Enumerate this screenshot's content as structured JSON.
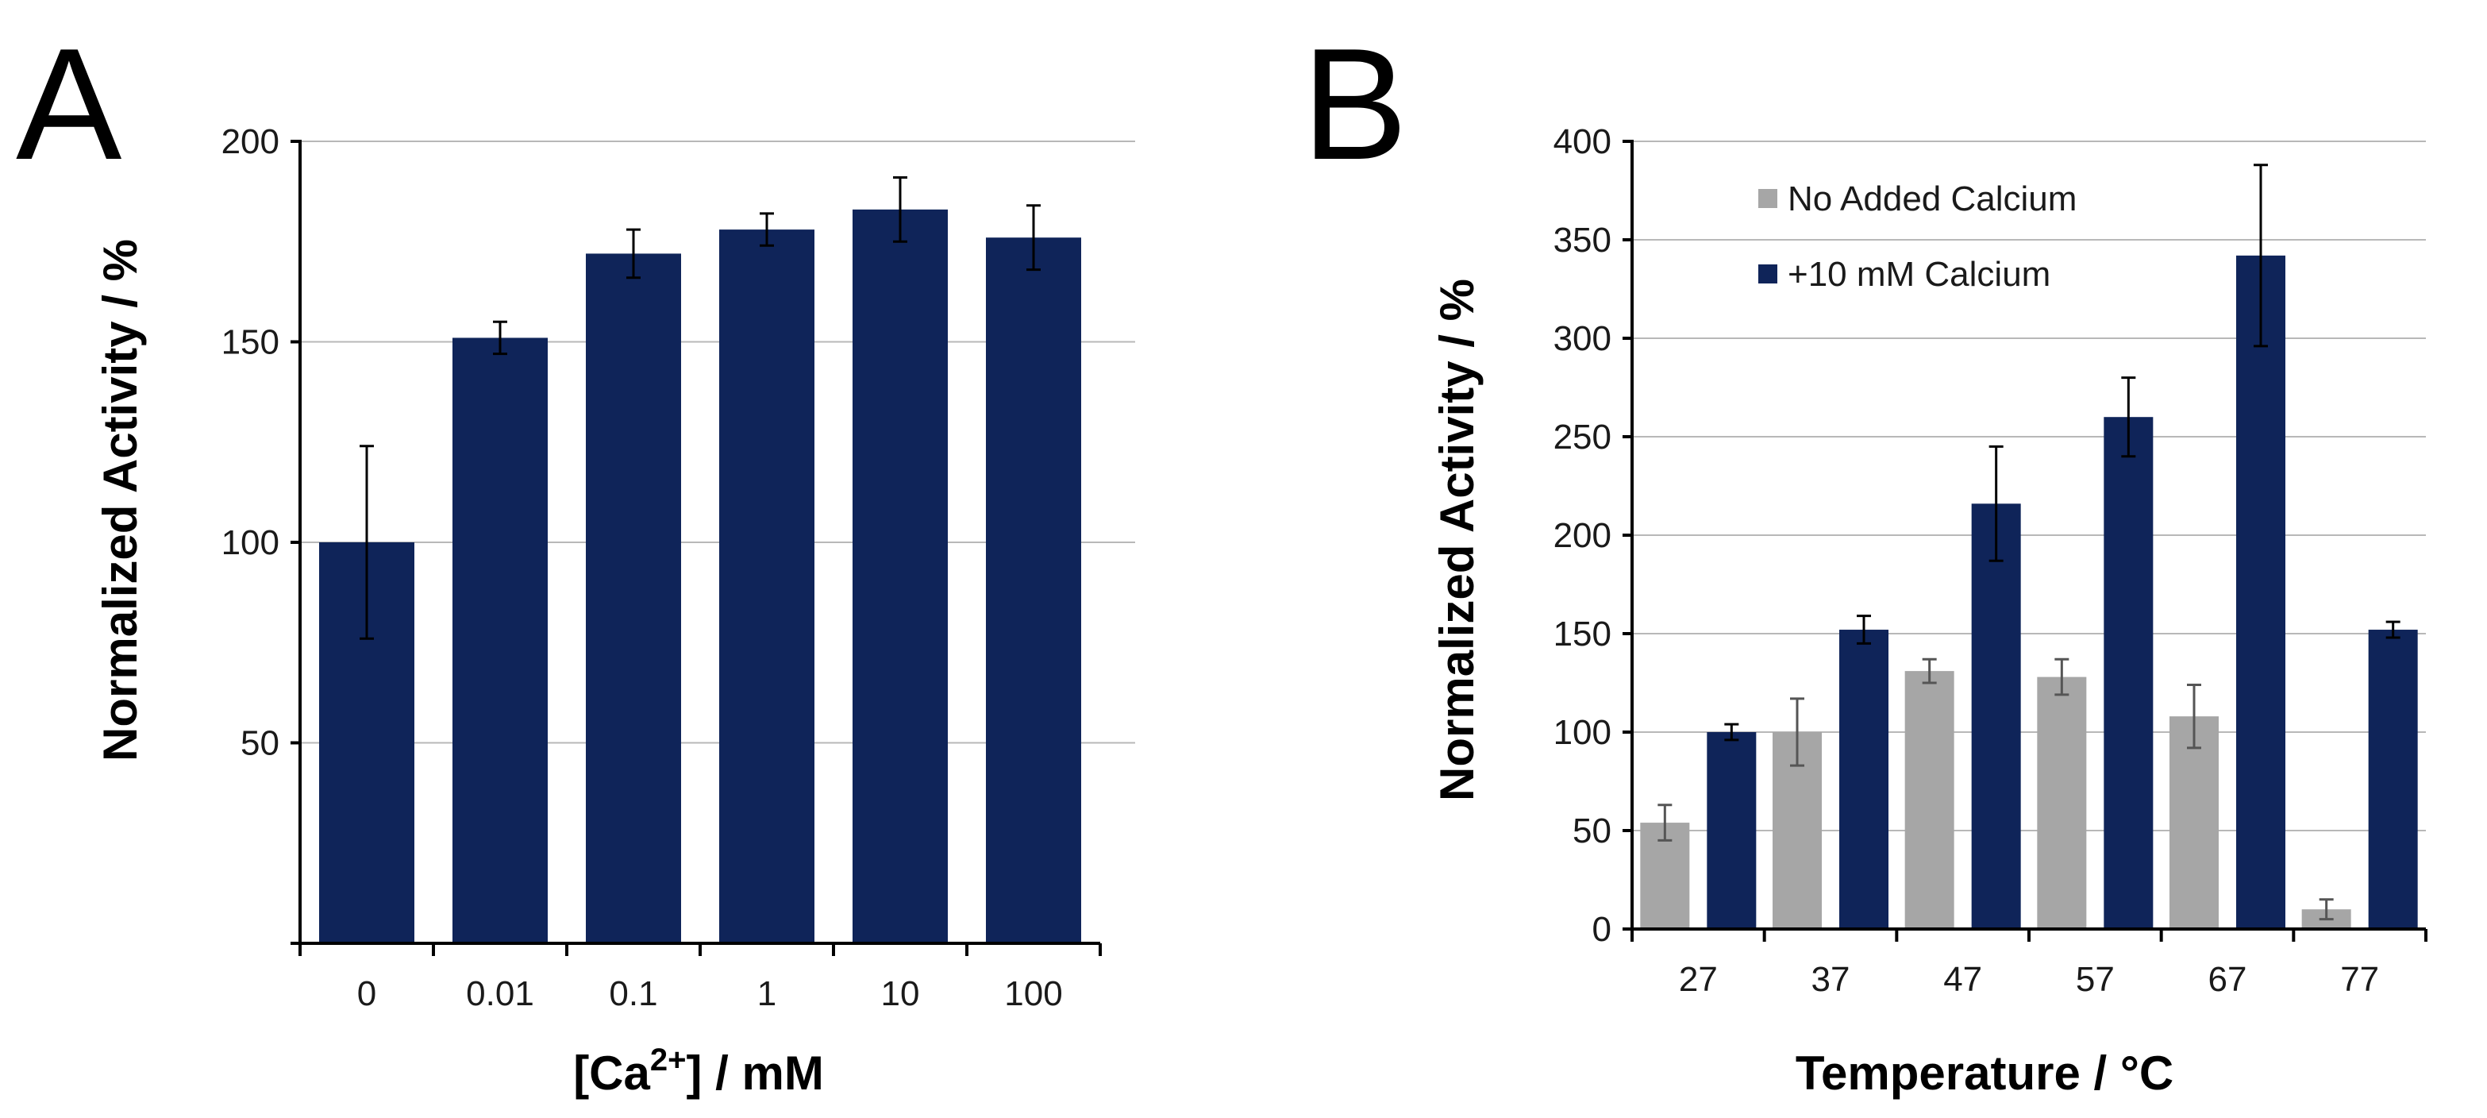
{
  "colors": {
    "navy": "#0f2459",
    "gray": "#a6a6a6",
    "grid": "#b8b8b8"
  },
  "chart_data": [
    {
      "panel": "A",
      "type": "bar",
      "categories": [
        "0",
        "0.01",
        "0.1",
        "1",
        "10",
        "100"
      ],
      "series": [
        {
          "name": "Activity",
          "color": "#0f2459",
          "values": [
            100,
            151,
            172,
            178,
            183,
            176
          ],
          "errors": [
            24,
            4,
            6,
            4,
            8,
            8
          ]
        }
      ],
      "xlabel": "[Ca2+] / mM",
      "xlabel_main": "[Ca",
      "xlabel_sup": "2+",
      "xlabel_rest": "] / mM",
      "ylabel": "Normalized Activity / %",
      "ylim": [
        0,
        200
      ],
      "ytick_values": [
        50,
        100,
        150,
        200
      ],
      "ytick_labels": [
        "50",
        "100",
        "150",
        "200"
      ],
      "grid": true,
      "legend": "none"
    },
    {
      "panel": "B",
      "type": "bar",
      "categories": [
        "27",
        "37",
        "47",
        "57",
        "67",
        "77"
      ],
      "series": [
        {
          "name": "No Added Calcium",
          "color": "#a6a6a6",
          "values": [
            54,
            100,
            131,
            128,
            108,
            10
          ],
          "errors": [
            9,
            17,
            6,
            9,
            16,
            5
          ]
        },
        {
          "name": "+10 mM Calcium",
          "color": "#0f2459",
          "values": [
            100,
            152,
            216,
            260,
            342,
            152
          ],
          "errors": [
            4,
            7,
            29,
            20,
            46,
            4
          ]
        }
      ],
      "xlabel": "Temperature / °C",
      "ylabel": "Normalized Activity / %",
      "ylim": [
        0,
        400
      ],
      "ytick_values": [
        0,
        50,
        100,
        150,
        200,
        250,
        300,
        350,
        400
      ],
      "ytick_labels": [
        "0",
        "50",
        "100",
        "150",
        "200",
        "250",
        "300",
        "350",
        "400"
      ],
      "grid": true,
      "legend": "top-left"
    }
  ]
}
